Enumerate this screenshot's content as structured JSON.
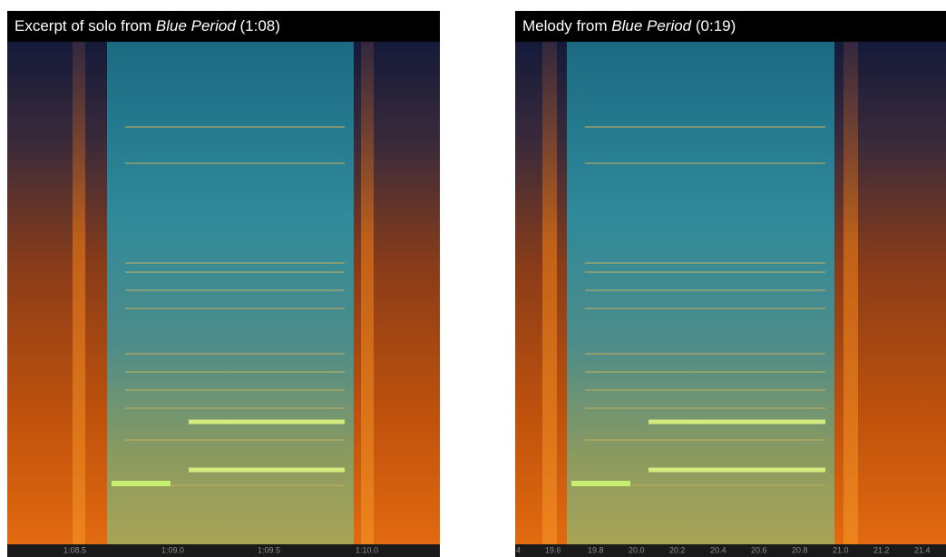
{
  "panels": [
    {
      "title": {
        "prefix": "Excerpt of solo from ",
        "italic": "Blue Period",
        "suffix": " (1:08)"
      },
      "time_labels": [
        "1:08.5",
        "1:09.0",
        "1:09.5",
        "1:10.0"
      ]
    },
    {
      "title": {
        "prefix": "Melody from ",
        "italic": "Blue Period",
        "suffix": " (0:19)"
      },
      "time_labels": [
        "4",
        "19.6",
        "19.8",
        "20.0",
        "20.2",
        "20.4",
        "20.6",
        "20.8",
        "21.0",
        "21.2",
        "21.4"
      ]
    }
  ]
}
